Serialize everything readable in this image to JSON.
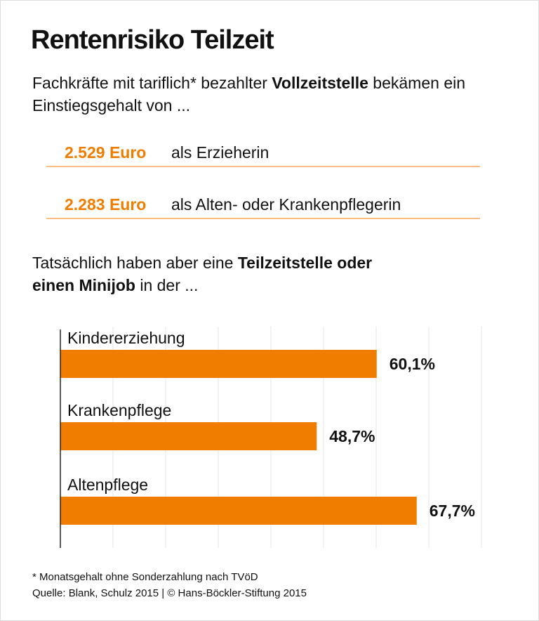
{
  "title": "Rentenrisiko Teilzeit",
  "intro": {
    "pre": "Fachkräfte mit tariflich* bezahlter ",
    "bold": "Vollzeitstelle",
    "post": " bekämen ein Einstiegsgehalt von ..."
  },
  "salaries": [
    {
      "amount": "2.529 Euro",
      "desc": "als Erzieherin"
    },
    {
      "amount": "2.283 Euro",
      "desc": "als Alten- oder Krankenpflegerin"
    }
  ],
  "intro2": {
    "pre": "Tatsächlich haben aber eine ",
    "bold1": "Teilzeitstelle oder",
    "bold2": "einen Minijob",
    "post": " in der ..."
  },
  "colors": {
    "accent": "#f07d00",
    "line": "#fbbd84",
    "grid": "#e4e4e4"
  },
  "chart_data": {
    "type": "bar",
    "orientation": "horizontal",
    "categories": [
      "Kindererziehung",
      "Krankenpflege",
      "Altenpflege"
    ],
    "values": [
      60.1,
      48.7,
      67.7
    ],
    "value_labels": [
      "60,1%",
      "48,7%",
      "67,7%"
    ],
    "unit": "%",
    "xlim": [
      0,
      80
    ],
    "grid_step": 10,
    "grid": true
  },
  "footnote": "* Monatsgehalt ohne Sonderzahlung nach TVöD",
  "source": "Quelle: Blank, Schulz 2015 | © Hans-Böckler-Stiftung 2015"
}
